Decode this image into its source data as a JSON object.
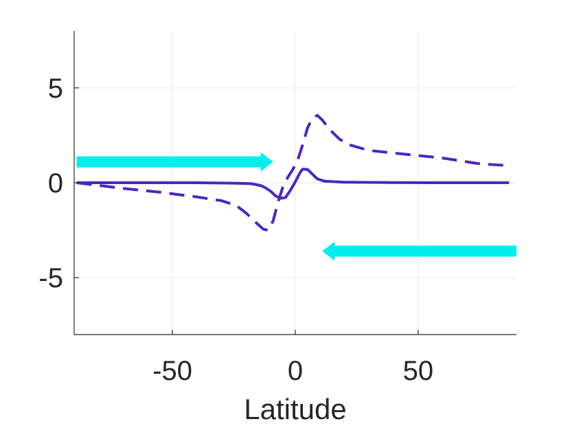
{
  "chart_data": {
    "type": "line",
    "xlabel": "Latitude",
    "ylabel": "",
    "xlim": [
      -90,
      90
    ],
    "ylim": [
      -8,
      8
    ],
    "xticks": [
      -50,
      0,
      50
    ],
    "yticks": [
      -5,
      0,
      5
    ],
    "xtick_labels": [
      "-50",
      "0",
      "50"
    ],
    "ytick_labels": [
      "-5",
      "0",
      "5"
    ],
    "grid": true,
    "colors": {
      "series": "#4b25c3",
      "arrow": "#00eeee",
      "axis": "#262626",
      "grid": "#e6e6e6"
    },
    "series": [
      {
        "style": "solid",
        "x": [
          -89,
          -60,
          -40,
          -25,
          -18,
          -14,
          -12,
          -10,
          -8,
          -6,
          -4,
          -2,
          0,
          2,
          3,
          5,
          7,
          9,
          12,
          20,
          40,
          60,
          87
        ],
        "y": [
          0,
          0,
          0,
          -0.02,
          -0.05,
          -0.15,
          -0.28,
          -0.45,
          -0.7,
          -0.82,
          -0.78,
          -0.4,
          0.05,
          0.55,
          0.72,
          0.7,
          0.45,
          0.2,
          0.08,
          0.03,
          0.01,
          0,
          0
        ]
      },
      {
        "style": "dashed",
        "x": [
          -89,
          -70,
          -55,
          -40,
          -30,
          -24,
          -20,
          -16,
          -13,
          -11,
          -9,
          -7,
          -5,
          -3,
          -1,
          1,
          3,
          5,
          7,
          9,
          11,
          14,
          18,
          22,
          30,
          45,
          60,
          75,
          87
        ],
        "y": [
          0,
          -0.3,
          -0.5,
          -0.75,
          -0.95,
          -1.2,
          -1.6,
          -2.1,
          -2.45,
          -2.5,
          -2.0,
          -1.0,
          -0.2,
          0.3,
          0.7,
          1.2,
          2.0,
          2.9,
          3.4,
          3.55,
          3.3,
          2.8,
          2.3,
          2.0,
          1.7,
          1.5,
          1.3,
          1.0,
          0.9
        ]
      }
    ],
    "arrows": [
      {
        "direction": "right",
        "x_start": -89,
        "x_end": -9,
        "y": 1.1
      },
      {
        "direction": "left",
        "x_start": 90,
        "x_end": 11,
        "y": -3.6
      }
    ]
  }
}
